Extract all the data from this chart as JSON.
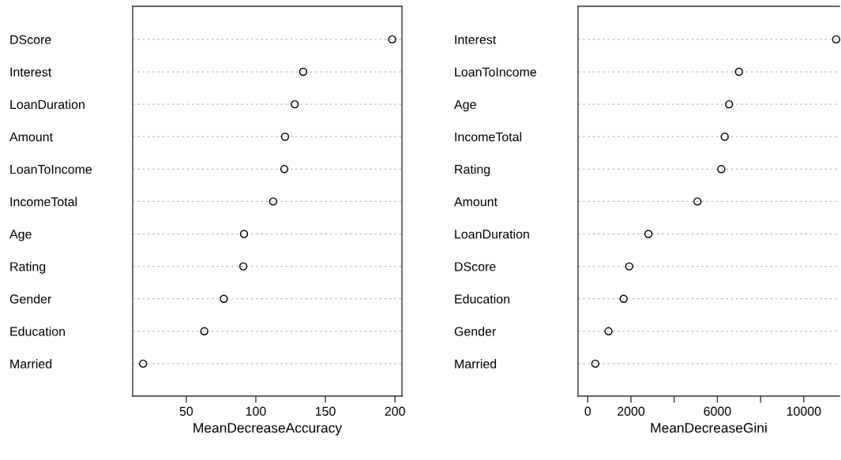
{
  "chart_data": [
    {
      "type": "scatter",
      "orientation": "horizontal",
      "xlabel": "MeanDecreaseAccuracy",
      "categories": [
        "DScore",
        "Interest",
        "LoanDuration",
        "Amount",
        "LoanToIncome",
        "IncomeTotal",
        "Age",
        "Rating",
        "Gender",
        "Education",
        "Married"
      ],
      "values": [
        198,
        134,
        128,
        121,
        120.5,
        112.5,
        91.5,
        91,
        77,
        63,
        19
      ],
      "color": "#000000",
      "marker": "circle",
      "grid": "y",
      "legend": false,
      "xlim": [
        11.5,
        205
      ],
      "xticks": [
        50,
        100,
        150,
        200
      ]
    },
    {
      "type": "scatter",
      "orientation": "horizontal",
      "xlabel": "MeanDecreaseGini",
      "categories": [
        "Interest",
        "LoanToIncome",
        "Age",
        "IncomeTotal",
        "Rating",
        "Amount",
        "LoanDuration",
        "DScore",
        "Education",
        "Gender",
        "Married"
      ],
      "values": [
        11500,
        7000,
        6540,
        6340,
        6180,
        5080,
        2810,
        1920,
        1660,
        960,
        350
      ],
      "color": "#000000",
      "marker": "circle",
      "grid": "y",
      "legend": false,
      "xlim": [
        -450,
        11650
      ],
      "xticks": [
        0,
        2000,
        {
          "value": 4000,
          "label": null
        },
        6000,
        {
          "value": 8000,
          "label": null
        },
        10000
      ]
    }
  ]
}
